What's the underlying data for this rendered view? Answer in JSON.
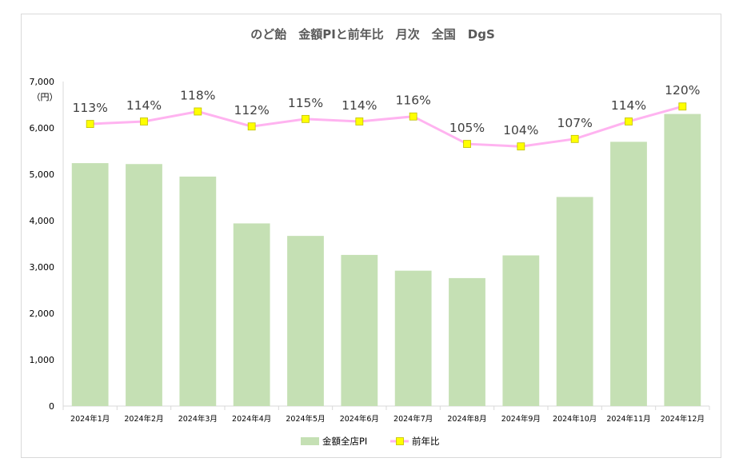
{
  "chart_data": {
    "type": "bar",
    "title": "のど飴　金額PIと前年比　月次　全国　DgS",
    "unit_label": "（円）",
    "categories": [
      "2024年1月",
      "2024年2月",
      "2024年3月",
      "2024年4月",
      "2024年5月",
      "2024年6月",
      "2024年7月",
      "2024年8月",
      "2024年9月",
      "2024年10月",
      "2024年11月",
      "2024年12月"
    ],
    "series": [
      {
        "name": "金額全店PI",
        "type": "bar",
        "axis": "left",
        "color": "#c5e0b4",
        "values": [
          5240,
          5220,
          4950,
          3940,
          3670,
          3260,
          2920,
          2760,
          3250,
          4510,
          5700,
          6300
        ]
      },
      {
        "name": "前年比",
        "type": "line",
        "axis": "right-hidden",
        "color": "#ffb3f0",
        "marker_color": "#ffff00",
        "values": [
          113,
          114,
          118,
          112,
          115,
          114,
          116,
          105,
          104,
          107,
          114,
          120
        ],
        "labels": [
          "113%",
          "114%",
          "118%",
          "112%",
          "115%",
          "114%",
          "116%",
          "105%",
          "104%",
          "107%",
          "114%",
          "120%"
        ]
      }
    ],
    "ylim": [
      0,
      7000
    ],
    "yticks": [
      0,
      1000,
      2000,
      3000,
      4000,
      5000,
      6000,
      7000
    ],
    "ytick_labels": [
      "0",
      "1,000",
      "2,000",
      "3,000",
      "4,000",
      "5,000",
      "6,000",
      "7,000"
    ],
    "legend_position": "bottom",
    "grid": false
  }
}
